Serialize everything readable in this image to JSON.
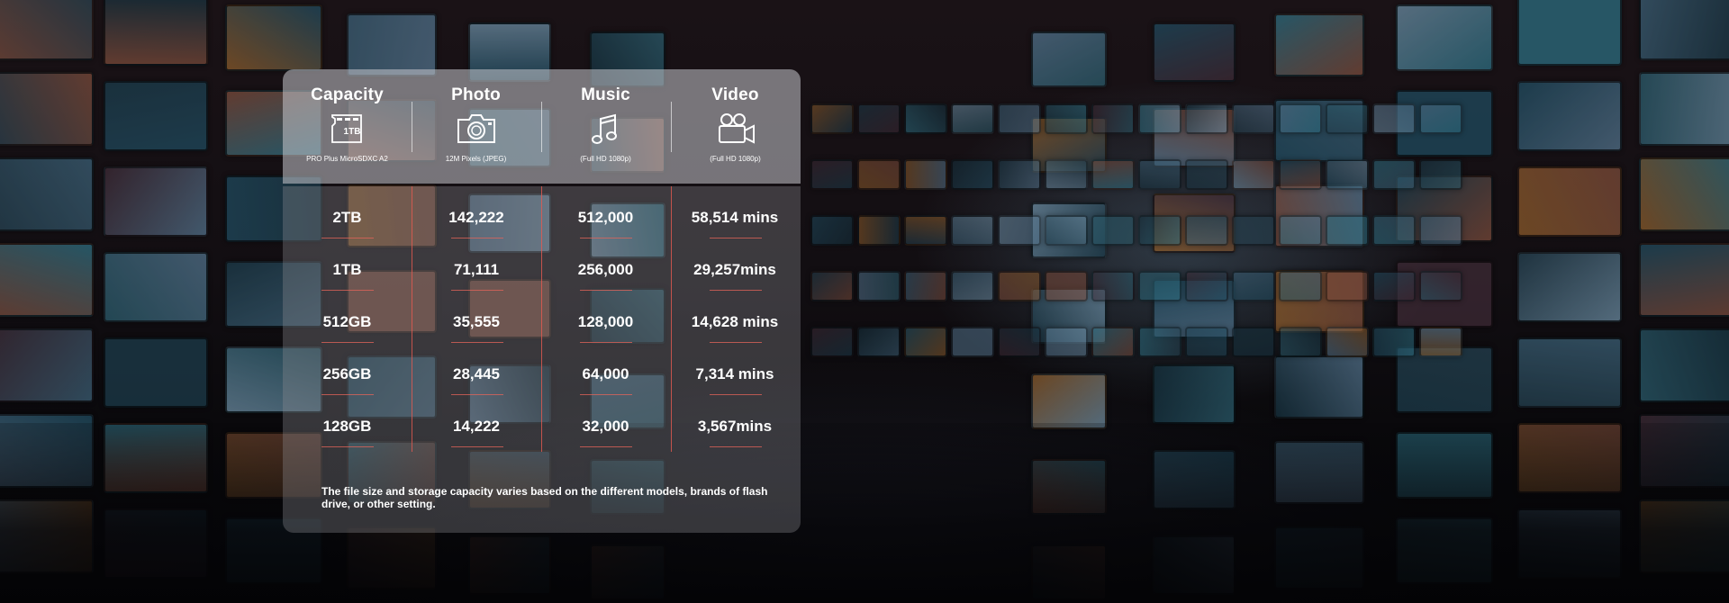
{
  "table": {
    "columns": [
      {
        "title": "Capacity",
        "icon": "microsd-card-icon",
        "caption": "PRO Plus MicroSDXC A2"
      },
      {
        "title": "Photo",
        "icon": "camera-icon",
        "caption": "12M Pixels (JPEG)"
      },
      {
        "title": "Music",
        "icon": "music-note-icon",
        "caption": "(Full HD 1080p)"
      },
      {
        "title": "Video",
        "icon": "video-camera-icon",
        "caption": "(Full HD 1080p)"
      }
    ],
    "card_label": "1TB",
    "rows": [
      {
        "capacity": "2TB",
        "photo": "142,222",
        "music": "512,000",
        "video": "58,514 mins"
      },
      {
        "capacity": "1TB",
        "photo": "71,111",
        "music": "256,000",
        "video": "29,257mins"
      },
      {
        "capacity": "512GB",
        "photo": "35,555",
        "music": "128,000",
        "video": "14,628 mins"
      },
      {
        "capacity": "256GB",
        "photo": "28,445",
        "music": "64,000",
        "video": "7,314 mins"
      },
      {
        "capacity": "128GB",
        "photo": "14,222",
        "music": "32,000",
        "video": "3,567mins"
      }
    ],
    "note": "The file size and storage capacity varies based on the different models, brands of flash drive, or other setting."
  },
  "colors": {
    "divider_red": "#e65a50",
    "text": "#ffffff"
  }
}
